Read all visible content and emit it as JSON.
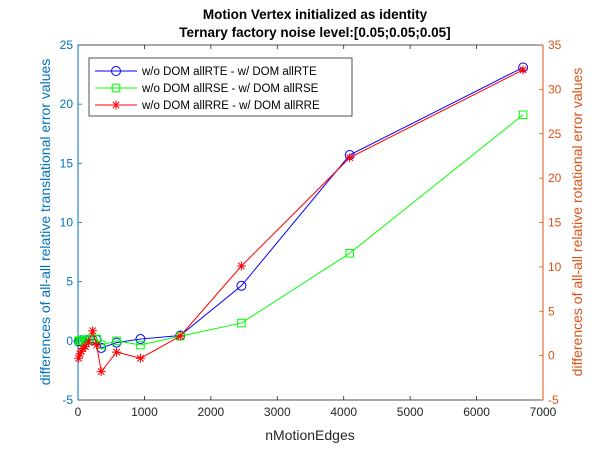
{
  "chart_data": {
    "type": "line",
    "title": "Motion Vertex initialized as identity",
    "subtitle": "Ternary factory noise level:[0.05;0.05;0.05]",
    "xlabel": "nMotionEdges",
    "ylabel_left": "differences of all-all relative translational error values",
    "ylabel_right": "differences of all-all relative rotational error values",
    "xlim": [
      0,
      7000
    ],
    "ylim_left": [
      -5,
      25
    ],
    "ylim_right": [
      -5,
      35
    ],
    "x_ticks": [
      "0",
      "1000",
      "2000",
      "3000",
      "4000",
      "5000",
      "6000",
      "7000"
    ],
    "y_left_ticks": [
      "-5",
      "0",
      "5",
      "10",
      "15",
      "20",
      "25"
    ],
    "y_right_ticks": [
      "-5",
      "0",
      "5",
      "10",
      "15",
      "20",
      "25",
      "30",
      "35"
    ],
    "grid": false,
    "legend_position": "top-left",
    "colors": {
      "left_axis": "#0072BD",
      "right_axis": "#D95319",
      "rte": "#0000FF",
      "rse": "#00FF00",
      "rre": "#FF0000"
    },
    "series": [
      {
        "name": "w/o DOM allRTE - w/ DOM allRTE",
        "axis": "left",
        "marker": "circle",
        "x": [
          10,
          30,
          50,
          75,
          110,
          160,
          220,
          280,
          350,
          580,
          940,
          1540,
          2460,
          4090,
          6700
        ],
        "y": [
          -0.05,
          0.0,
          0.05,
          0.0,
          0.05,
          0.1,
          0.1,
          0.1,
          -0.6,
          -0.15,
          0.15,
          0.45,
          4.65,
          15.7,
          23.1
        ]
      },
      {
        "name": "w/o DOM allRSE - w/ DOM allRSE",
        "axis": "left",
        "marker": "square",
        "x": [
          10,
          30,
          50,
          75,
          110,
          160,
          220,
          280,
          350,
          580,
          940,
          1540,
          2460,
          4090,
          6700
        ],
        "y": [
          0.0,
          0.0,
          0.05,
          0.05,
          0.1,
          0.1,
          0.15,
          0.15,
          -0.35,
          0.0,
          -0.35,
          0.4,
          1.5,
          7.4,
          19.1
        ]
      },
      {
        "name": "w/o DOM allRRE - w/ DOM allRRE",
        "axis": "right",
        "marker": "star",
        "x": [
          10,
          30,
          50,
          75,
          110,
          160,
          220,
          280,
          350,
          580,
          940,
          1540,
          2460,
          4090,
          6700
        ],
        "y": [
          -0.3,
          0.2,
          0.5,
          0.8,
          1.0,
          1.5,
          2.8,
          1.2,
          -1.8,
          0.4,
          -0.3,
          2.2,
          10.1,
          22.3,
          32.2
        ]
      }
    ]
  }
}
